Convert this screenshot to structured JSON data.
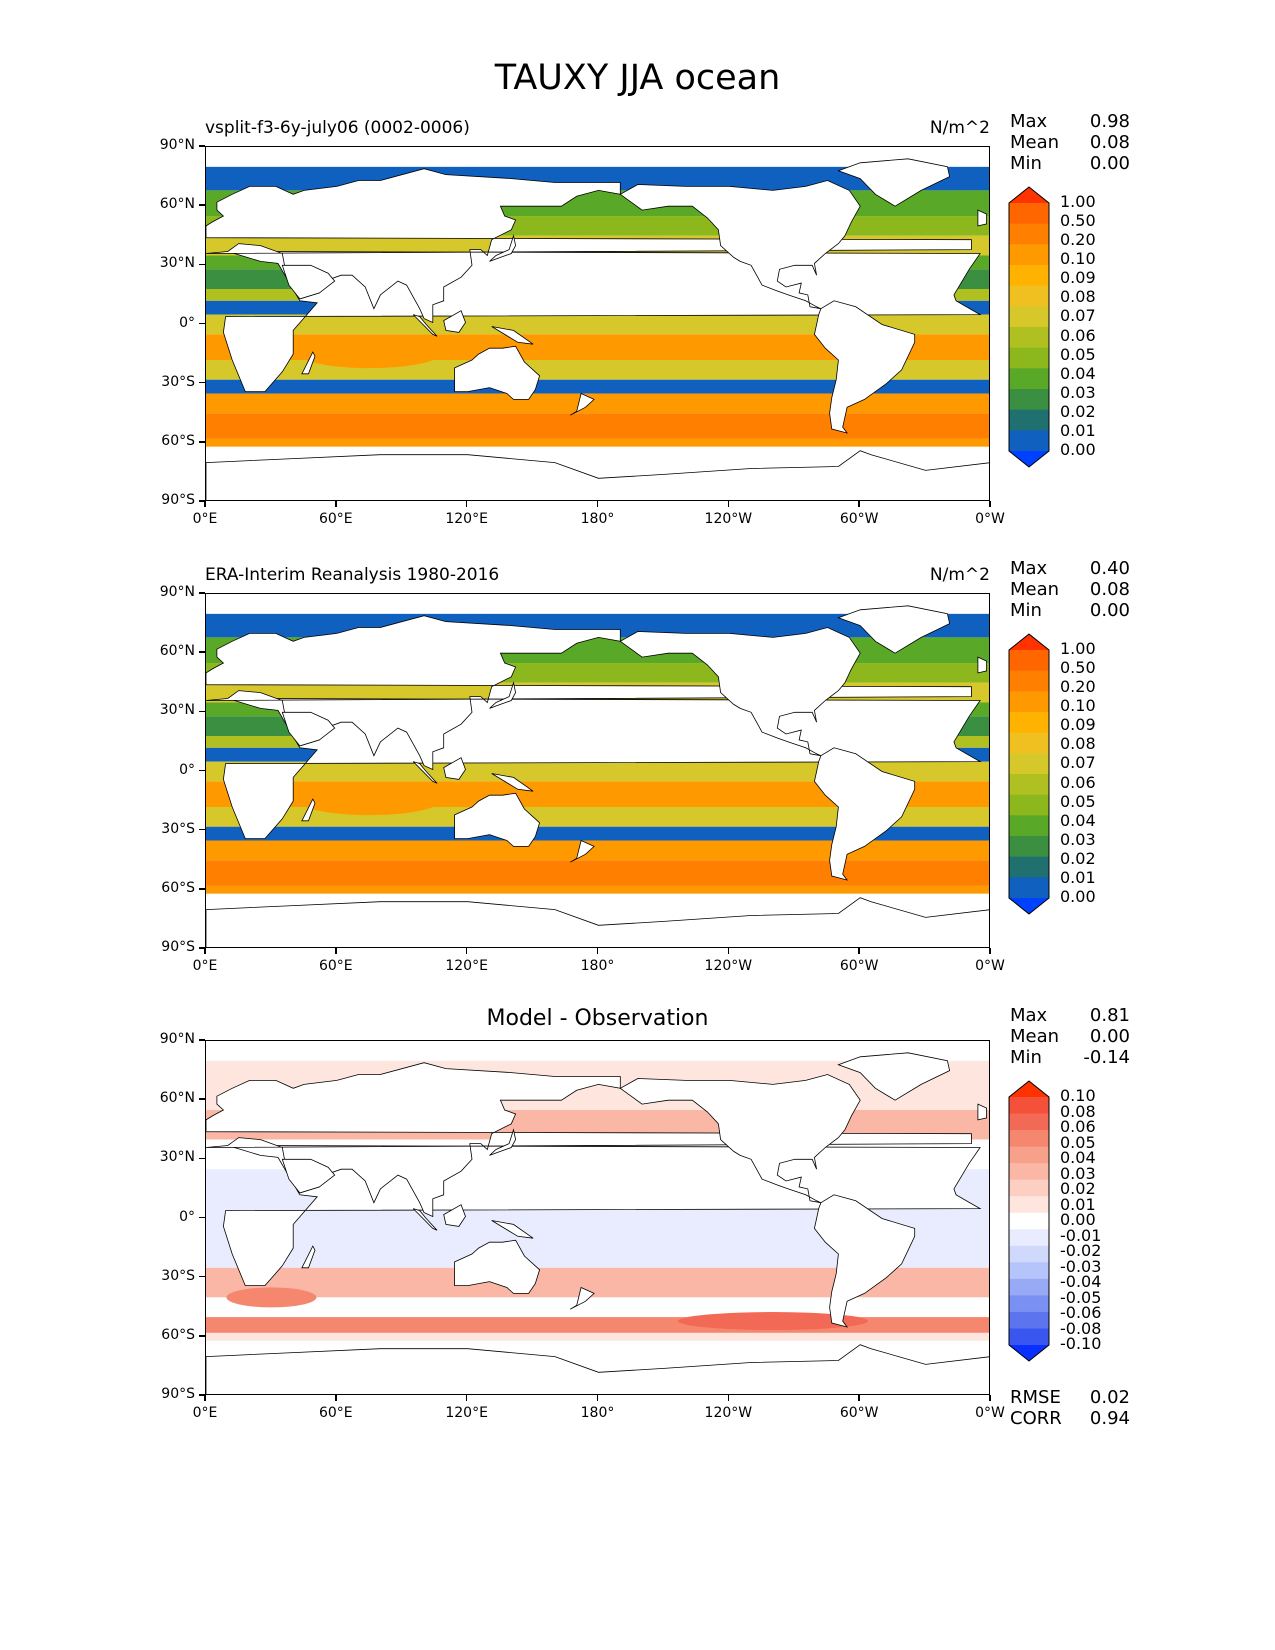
{
  "title": "TAUXY JJA ocean",
  "panels": [
    {
      "id": "model",
      "left_label": "vsplit-f3-6y-july06 (0002-0006)",
      "center_title": "",
      "units": "N/m^2",
      "stats": {
        "max_key": "Max",
        "max": "0.98",
        "mean_key": "Mean",
        "mean": "0.08",
        "min_key": "Min",
        "min": "0.00"
      },
      "colorbar_labels": [
        "1.00",
        "0.50",
        "0.20",
        "0.10",
        "0.09",
        "0.08",
        "0.07",
        "0.06",
        "0.05",
        "0.04",
        "0.03",
        "0.02",
        "0.01",
        "0.00"
      ],
      "colorbar_colors": [
        "#ff3300",
        "#ff6600",
        "#ff8000",
        "#ff9900",
        "#ffb300",
        "#f0c020",
        "#d6c82a",
        "#b0c020",
        "#8cb81e",
        "#5aa828",
        "#3a9040",
        "#207070",
        "#1060c0",
        "#0040ff"
      ]
    },
    {
      "id": "obs",
      "left_label": "ERA-Interim Reanalysis 1980-2016",
      "center_title": "",
      "units": "N/m^2",
      "stats": {
        "max_key": "Max",
        "max": "0.40",
        "mean_key": "Mean",
        "mean": "0.08",
        "min_key": "Min",
        "min": "0.00"
      },
      "colorbar_labels": [
        "1.00",
        "0.50",
        "0.20",
        "0.10",
        "0.09",
        "0.08",
        "0.07",
        "0.06",
        "0.05",
        "0.04",
        "0.03",
        "0.02",
        "0.01",
        "0.00"
      ],
      "colorbar_colors": [
        "#ff3300",
        "#ff6600",
        "#ff8000",
        "#ff9900",
        "#ffb300",
        "#f0c020",
        "#d6c82a",
        "#b0c020",
        "#8cb81e",
        "#5aa828",
        "#3a9040",
        "#207070",
        "#1060c0",
        "#0040ff"
      ]
    },
    {
      "id": "diff",
      "left_label": "",
      "center_title": "Model - Observation",
      "units": "",
      "stats": {
        "max_key": "Max",
        "max": "0.81",
        "mean_key": "Mean",
        "mean": "0.00",
        "min_key": "Min",
        "min": "-0.14"
      },
      "colorbar_labels": [
        "0.10",
        "0.08",
        "0.06",
        "0.05",
        "0.04",
        "0.03",
        "0.02",
        "0.01",
        "0.00",
        "-0.01",
        "-0.02",
        "-0.03",
        "-0.04",
        "-0.05",
        "-0.06",
        "-0.08",
        "-0.10"
      ],
      "colorbar_colors": [
        "#ff3300",
        "#f5503a",
        "#f26a55",
        "#f5876f",
        "#f7a08a",
        "#fab7a5",
        "#fccfc2",
        "#fee6df",
        "#ffffff",
        "#e8ecfe",
        "#d0d9fc",
        "#b5c4fa",
        "#98aaf6",
        "#7a90f2",
        "#5c74ee",
        "#3a56f0",
        "#0a30ff"
      ],
      "rmse_key": "RMSE",
      "rmse": "0.02",
      "corr_key": "CORR",
      "corr": "0.94"
    }
  ],
  "axes": {
    "lat_ticks": [
      "90°N",
      "60°N",
      "30°N",
      "0°",
      "30°S",
      "60°S",
      "90°S"
    ],
    "lon_ticks": [
      "0°E",
      "60°E",
      "120°E",
      "180°",
      "120°W",
      "60°W",
      "0°W"
    ]
  },
  "colors": {
    "land": "#ffffff",
    "coast": "#000000"
  }
}
